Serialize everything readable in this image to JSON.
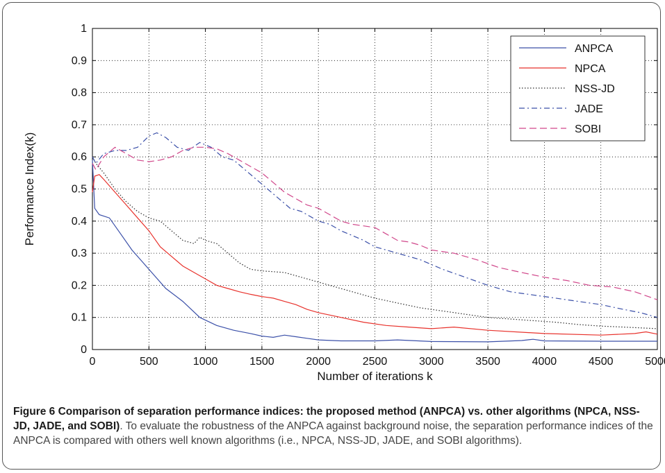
{
  "chart_data": {
    "type": "line",
    "xlabel": "Number of iterations k",
    "ylabel": "Performance Index(k)",
    "xlim": [
      0,
      5000
    ],
    "ylim": [
      0,
      1
    ],
    "xticks": [
      0,
      500,
      1000,
      1500,
      2000,
      2500,
      3000,
      3500,
      4000,
      4500,
      5000
    ],
    "yticks": [
      0,
      0.1,
      0.2,
      0.3,
      0.4,
      0.5,
      0.6,
      0.7,
      0.8,
      0.9,
      1
    ],
    "ytick_labels": [
      "0",
      "0.1",
      "0.2",
      "0.3",
      "0.4",
      "0.5",
      "0.6",
      "0.7",
      "0.8",
      "0.9",
      "1"
    ],
    "grid": true,
    "legend_position": "top-right",
    "series": [
      {
        "name": "ANPCA",
        "color": "#3a4fa8",
        "dash": "solid",
        "points": [
          [
            0,
            0.59
          ],
          [
            20,
            0.44
          ],
          [
            60,
            0.42
          ],
          [
            150,
            0.41
          ],
          [
            250,
            0.36
          ],
          [
            350,
            0.31
          ],
          [
            450,
            0.27
          ],
          [
            550,
            0.23
          ],
          [
            650,
            0.19
          ],
          [
            800,
            0.15
          ],
          [
            950,
            0.1
          ],
          [
            1100,
            0.075
          ],
          [
            1250,
            0.06
          ],
          [
            1400,
            0.05
          ],
          [
            1500,
            0.042
          ],
          [
            1600,
            0.038
          ],
          [
            1700,
            0.045
          ],
          [
            1800,
            0.04
          ],
          [
            1900,
            0.035
          ],
          [
            2000,
            0.03
          ],
          [
            2200,
            0.027
          ],
          [
            2500,
            0.027
          ],
          [
            2700,
            0.03
          ],
          [
            3000,
            0.025
          ],
          [
            3500,
            0.024
          ],
          [
            3800,
            0.028
          ],
          [
            3900,
            0.032
          ],
          [
            4000,
            0.027
          ],
          [
            4500,
            0.026
          ],
          [
            5000,
            0.026
          ]
        ]
      },
      {
        "name": "NPCA",
        "color": "#e8312b",
        "dash": "solid",
        "points": [
          [
            0,
            0.49
          ],
          [
            20,
            0.54
          ],
          [
            60,
            0.545
          ],
          [
            100,
            0.53
          ],
          [
            200,
            0.49
          ],
          [
            300,
            0.45
          ],
          [
            400,
            0.41
          ],
          [
            500,
            0.37
          ],
          [
            600,
            0.32
          ],
          [
            700,
            0.29
          ],
          [
            800,
            0.26
          ],
          [
            900,
            0.24
          ],
          [
            1000,
            0.22
          ],
          [
            1100,
            0.2
          ],
          [
            1200,
            0.19
          ],
          [
            1300,
            0.18
          ],
          [
            1400,
            0.172
          ],
          [
            1500,
            0.165
          ],
          [
            1600,
            0.16
          ],
          [
            1700,
            0.15
          ],
          [
            1800,
            0.14
          ],
          [
            1900,
            0.125
          ],
          [
            2000,
            0.115
          ],
          [
            2200,
            0.1
          ],
          [
            2400,
            0.085
          ],
          [
            2600,
            0.075
          ],
          [
            2800,
            0.07
          ],
          [
            3000,
            0.065
          ],
          [
            3200,
            0.07
          ],
          [
            3500,
            0.06
          ],
          [
            4000,
            0.05
          ],
          [
            4500,
            0.045
          ],
          [
            4800,
            0.05
          ],
          [
            4900,
            0.055
          ],
          [
            5000,
            0.048
          ]
        ]
      },
      {
        "name": "NSS-JD",
        "color": "#2a2a2a",
        "dash": "dotted",
        "points": [
          [
            0,
            0.6
          ],
          [
            30,
            0.58
          ],
          [
            100,
            0.55
          ],
          [
            200,
            0.5
          ],
          [
            300,
            0.46
          ],
          [
            400,
            0.43
          ],
          [
            500,
            0.41
          ],
          [
            600,
            0.4
          ],
          [
            700,
            0.37
          ],
          [
            800,
            0.34
          ],
          [
            900,
            0.33
          ],
          [
            950,
            0.35
          ],
          [
            1000,
            0.34
          ],
          [
            1100,
            0.33
          ],
          [
            1200,
            0.3
          ],
          [
            1300,
            0.27
          ],
          [
            1400,
            0.25
          ],
          [
            1500,
            0.245
          ],
          [
            1700,
            0.24
          ],
          [
            1900,
            0.22
          ],
          [
            2100,
            0.2
          ],
          [
            2300,
            0.18
          ],
          [
            2500,
            0.16
          ],
          [
            2700,
            0.145
          ],
          [
            2900,
            0.13
          ],
          [
            3100,
            0.12
          ],
          [
            3300,
            0.11
          ],
          [
            3500,
            0.1
          ],
          [
            3700,
            0.095
          ],
          [
            3900,
            0.09
          ],
          [
            4100,
            0.085
          ],
          [
            4300,
            0.078
          ],
          [
            4500,
            0.073
          ],
          [
            4700,
            0.07
          ],
          [
            5000,
            0.065
          ]
        ]
      },
      {
        "name": "JADE",
        "color": "#3a4fa8",
        "dash": "dashdot",
        "points": [
          [
            0,
            0.6
          ],
          [
            30,
            0.58
          ],
          [
            100,
            0.61
          ],
          [
            200,
            0.62
          ],
          [
            300,
            0.62
          ],
          [
            400,
            0.63
          ],
          [
            500,
            0.665
          ],
          [
            570,
            0.675
          ],
          [
            650,
            0.66
          ],
          [
            750,
            0.63
          ],
          [
            850,
            0.62
          ],
          [
            950,
            0.645
          ],
          [
            1050,
            0.63
          ],
          [
            1150,
            0.6
          ],
          [
            1250,
            0.59
          ],
          [
            1350,
            0.56
          ],
          [
            1450,
            0.53
          ],
          [
            1550,
            0.5
          ],
          [
            1650,
            0.47
          ],
          [
            1750,
            0.44
          ],
          [
            1850,
            0.43
          ],
          [
            2000,
            0.4
          ],
          [
            2100,
            0.39
          ],
          [
            2200,
            0.37
          ],
          [
            2300,
            0.355
          ],
          [
            2400,
            0.34
          ],
          [
            2500,
            0.32
          ],
          [
            2700,
            0.3
          ],
          [
            2900,
            0.28
          ],
          [
            3100,
            0.25
          ],
          [
            3300,
            0.225
          ],
          [
            3500,
            0.2
          ],
          [
            3700,
            0.18
          ],
          [
            3900,
            0.17
          ],
          [
            4100,
            0.16
          ],
          [
            4300,
            0.15
          ],
          [
            4500,
            0.14
          ],
          [
            4700,
            0.125
          ],
          [
            4850,
            0.115
          ],
          [
            5000,
            0.1
          ]
        ]
      },
      {
        "name": "SOBI",
        "color": "#d0468a",
        "dash": "dashed",
        "points": [
          [
            0,
            0.58
          ],
          [
            30,
            0.56
          ],
          [
            100,
            0.6
          ],
          [
            200,
            0.63
          ],
          [
            300,
            0.61
          ],
          [
            400,
            0.59
          ],
          [
            500,
            0.585
          ],
          [
            600,
            0.59
          ],
          [
            700,
            0.6
          ],
          [
            800,
            0.62
          ],
          [
            900,
            0.63
          ],
          [
            1000,
            0.63
          ],
          [
            1100,
            0.625
          ],
          [
            1200,
            0.61
          ],
          [
            1300,
            0.59
          ],
          [
            1400,
            0.57
          ],
          [
            1500,
            0.55
          ],
          [
            1600,
            0.52
          ],
          [
            1700,
            0.49
          ],
          [
            1800,
            0.47
          ],
          [
            1900,
            0.45
          ],
          [
            2000,
            0.44
          ],
          [
            2100,
            0.42
          ],
          [
            2200,
            0.4
          ],
          [
            2300,
            0.39
          ],
          [
            2400,
            0.385
          ],
          [
            2500,
            0.38
          ],
          [
            2600,
            0.36
          ],
          [
            2700,
            0.34
          ],
          [
            2800,
            0.335
          ],
          [
            2900,
            0.325
          ],
          [
            3000,
            0.31
          ],
          [
            3200,
            0.3
          ],
          [
            3400,
            0.28
          ],
          [
            3600,
            0.255
          ],
          [
            3800,
            0.24
          ],
          [
            4000,
            0.225
          ],
          [
            4200,
            0.215
          ],
          [
            4400,
            0.2
          ],
          [
            4600,
            0.195
          ],
          [
            4800,
            0.18
          ],
          [
            5000,
            0.155
          ]
        ]
      }
    ]
  },
  "caption": {
    "bold": "Figure 6 Comparison of separation performance indices: the proposed method (ANPCA) vs. other algorithms (NPCA, NSS-JD, JADE, and SOBI)",
    "text": ". To evaluate the robustness of the ANPCA against background noise, the separation performance indices of the ANPCA is compared with others well known algorithms (i.e., NPCA, NSS-JD, JADE, and SOBI algorithms)."
  }
}
